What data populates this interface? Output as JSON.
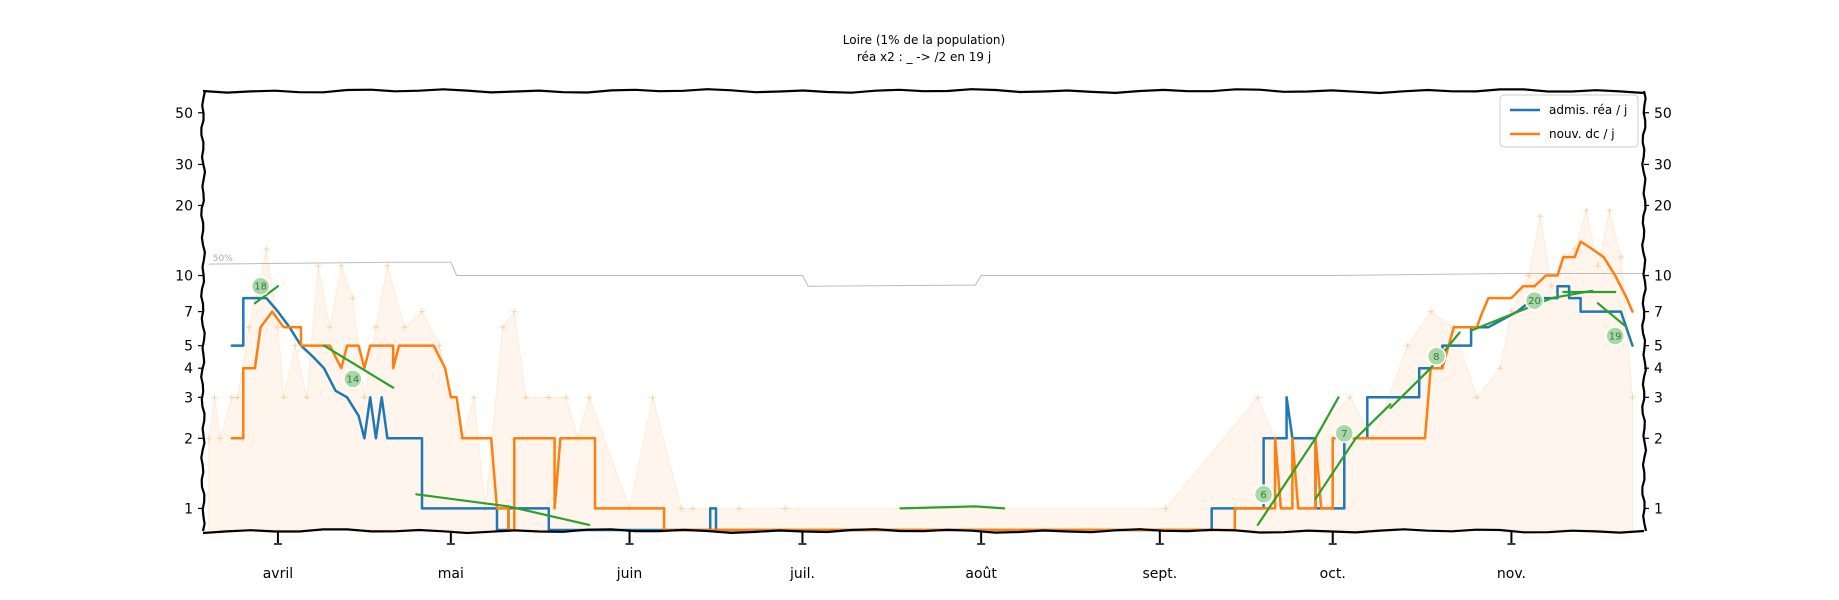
{
  "chart_data": {
    "type": "line",
    "title": "Loire (1% de la population)",
    "subtitle": "réa x2 : _ -> /2 en 19 j",
    "xlabel": "",
    "ylabel": "",
    "yscale": "log",
    "ylim": [
      0.8,
      62
    ],
    "xlim": [
      "2020-03-19",
      "2020-11-24"
    ],
    "grid": false,
    "legend_position": "top-right",
    "x_tick_labels": [
      {
        "date": "2020-04-01",
        "label": "avril"
      },
      {
        "date": "2020-05-01",
        "label": "mai"
      },
      {
        "date": "2020-06-01",
        "label": "juin"
      },
      {
        "date": "2020-07-01",
        "label": "juil."
      },
      {
        "date": "2020-08-01",
        "label": "août"
      },
      {
        "date": "2020-09-01",
        "label": "sept."
      },
      {
        "date": "2020-10-01",
        "label": "oct."
      },
      {
        "date": "2020-11-01",
        "label": "nov."
      }
    ],
    "y_ticks": [
      1,
      2,
      3,
      4,
      5,
      7,
      10,
      20,
      30,
      50
    ],
    "y_tick_labels": [
      "1",
      "2",
      "3",
      "4",
      "5",
      "7",
      "10",
      "20",
      "30",
      "50"
    ],
    "series": [
      {
        "name": "admis. réa / j",
        "color": "#1f77b4",
        "points": [
          [
            "2020-03-24",
            5
          ],
          [
            "2020-03-26",
            5
          ],
          [
            "2020-03-26",
            8
          ],
          [
            "2020-03-30",
            8
          ],
          [
            "2020-04-01",
            7
          ],
          [
            "2020-04-03",
            6
          ],
          [
            "2020-04-05",
            5
          ],
          [
            "2020-04-07",
            4.5
          ],
          [
            "2020-04-09",
            4
          ],
          [
            "2020-04-11",
            3.2
          ],
          [
            "2020-04-13",
            3
          ],
          [
            "2020-04-15",
            2.5
          ],
          [
            "2020-04-16",
            2
          ],
          [
            "2020-04-17",
            3
          ],
          [
            "2020-04-18",
            2
          ],
          [
            "2020-04-19",
            3
          ],
          [
            "2020-04-20",
            2
          ],
          [
            "2020-04-26",
            2
          ],
          [
            "2020-04-26",
            1
          ],
          [
            "2020-05-09",
            1
          ],
          [
            "2020-05-09",
            0.78
          ],
          [
            "2020-05-11",
            0.78
          ],
          [
            "2020-05-11",
            1
          ],
          [
            "2020-05-18",
            1
          ],
          [
            "2020-05-18",
            0.78
          ],
          [
            "2020-06-15",
            0.78
          ],
          [
            "2020-06-15",
            1
          ],
          [
            "2020-06-16",
            1
          ],
          [
            "2020-06-16",
            0.78
          ],
          [
            "2020-09-10",
            0.78
          ],
          [
            "2020-09-10",
            1
          ],
          [
            "2020-09-19",
            1
          ],
          [
            "2020-09-19",
            2
          ],
          [
            "2020-09-23",
            2
          ],
          [
            "2020-09-23",
            3
          ],
          [
            "2020-09-24",
            2
          ],
          [
            "2020-09-28",
            2
          ],
          [
            "2020-09-28",
            1
          ],
          [
            "2020-10-03",
            1
          ],
          [
            "2020-10-03",
            2
          ],
          [
            "2020-10-07",
            2
          ],
          [
            "2020-10-07",
            3
          ],
          [
            "2020-10-16",
            3
          ],
          [
            "2020-10-16",
            4
          ],
          [
            "2020-10-20",
            4
          ],
          [
            "2020-10-20",
            5
          ],
          [
            "2020-10-25",
            5
          ],
          [
            "2020-10-25",
            6
          ],
          [
            "2020-10-28",
            6
          ],
          [
            "2020-11-02",
            7
          ],
          [
            "2020-11-05",
            8
          ],
          [
            "2020-11-09",
            8
          ],
          [
            "2020-11-09",
            9
          ],
          [
            "2020-11-11",
            9
          ],
          [
            "2020-11-11",
            8
          ],
          [
            "2020-11-13",
            8
          ],
          [
            "2020-11-13",
            7
          ],
          [
            "2020-11-20",
            7
          ],
          [
            "2020-11-22",
            5
          ]
        ]
      },
      {
        "name": "nouv. dc / j",
        "color": "#ff7f0e",
        "points": [
          [
            "2020-03-24",
            2
          ],
          [
            "2020-03-26",
            2
          ],
          [
            "2020-03-26",
            4
          ],
          [
            "2020-03-28",
            4
          ],
          [
            "2020-03-29",
            6
          ],
          [
            "2020-03-31",
            7
          ],
          [
            "2020-04-02",
            6
          ],
          [
            "2020-04-05",
            6
          ],
          [
            "2020-04-05",
            5
          ],
          [
            "2020-04-10",
            5
          ],
          [
            "2020-04-12",
            4
          ],
          [
            "2020-04-13",
            5
          ],
          [
            "2020-04-15",
            5
          ],
          [
            "2020-04-16",
            4
          ],
          [
            "2020-04-17",
            5
          ],
          [
            "2020-04-21",
            5
          ],
          [
            "2020-04-21",
            4
          ],
          [
            "2020-04-22",
            5
          ],
          [
            "2020-04-28",
            5
          ],
          [
            "2020-04-30",
            4
          ],
          [
            "2020-05-01",
            3
          ],
          [
            "2020-05-02",
            3
          ],
          [
            "2020-05-03",
            2
          ],
          [
            "2020-05-08",
            2
          ],
          [
            "2020-05-09",
            1
          ],
          [
            "2020-05-11",
            1
          ],
          [
            "2020-05-11",
            0.78
          ],
          [
            "2020-05-12",
            0.78
          ],
          [
            "2020-05-12",
            2
          ],
          [
            "2020-05-19",
            2
          ],
          [
            "2020-05-19",
            1
          ],
          [
            "2020-05-20",
            2
          ],
          [
            "2020-05-26",
            2
          ],
          [
            "2020-05-26",
            1
          ],
          [
            "2020-06-07",
            1
          ],
          [
            "2020-06-07",
            0.78
          ],
          [
            "2020-09-14",
            0.78
          ],
          [
            "2020-09-14",
            1
          ],
          [
            "2020-09-21",
            1
          ],
          [
            "2020-09-21",
            2
          ],
          [
            "2020-09-22",
            1
          ],
          [
            "2020-09-24",
            1
          ],
          [
            "2020-09-24",
            2
          ],
          [
            "2020-09-25",
            1
          ],
          [
            "2020-09-28",
            1
          ],
          [
            "2020-09-28",
            2
          ],
          [
            "2020-09-29",
            1
          ],
          [
            "2020-10-01",
            1
          ],
          [
            "2020-10-01",
            2
          ],
          [
            "2020-10-10",
            2
          ],
          [
            "2020-10-17",
            2
          ],
          [
            "2020-10-18",
            4
          ],
          [
            "2020-10-20",
            4
          ],
          [
            "2020-10-22",
            6
          ],
          [
            "2020-10-26",
            6
          ],
          [
            "2020-10-27",
            7
          ],
          [
            "2020-10-28",
            8
          ],
          [
            "2020-11-01",
            8
          ],
          [
            "2020-11-03",
            9
          ],
          [
            "2020-11-05",
            9
          ],
          [
            "2020-11-07",
            10
          ],
          [
            "2020-11-09",
            10
          ],
          [
            "2020-11-10",
            12
          ],
          [
            "2020-11-12",
            12
          ],
          [
            "2020-11-13",
            14
          ],
          [
            "2020-11-15",
            13
          ],
          [
            "2020-11-17",
            12
          ],
          [
            "2020-11-19",
            10
          ],
          [
            "2020-11-21",
            8
          ],
          [
            "2020-11-22",
            7
          ]
        ]
      }
    ],
    "raw_daily_points": {
      "color": "#ffbf7f",
      "dates": [
        "2020-03-20",
        "2020-03-21",
        "2020-03-22",
        "2020-03-24",
        "2020-03-25",
        "2020-03-27",
        "2020-03-30",
        "2020-04-01",
        "2020-04-02",
        "2020-04-04",
        "2020-04-06",
        "2020-04-08",
        "2020-04-10",
        "2020-04-12",
        "2020-04-14",
        "2020-04-16",
        "2020-04-18",
        "2020-04-20",
        "2020-04-23",
        "2020-04-26",
        "2020-04-29",
        "2020-05-03",
        "2020-05-05",
        "2020-05-07",
        "2020-05-10",
        "2020-05-12",
        "2020-05-14",
        "2020-05-18",
        "2020-05-21",
        "2020-05-23",
        "2020-05-25",
        "2020-06-01",
        "2020-06-05",
        "2020-06-10",
        "2020-06-12",
        "2020-06-20",
        "2020-06-28",
        "2020-09-02",
        "2020-09-18",
        "2020-09-21",
        "2020-09-27",
        "2020-10-04",
        "2020-10-08",
        "2020-10-14",
        "2020-10-18",
        "2020-10-22",
        "2020-10-26",
        "2020-10-30",
        "2020-11-01",
        "2020-11-04",
        "2020-11-06",
        "2020-11-08",
        "2020-11-10",
        "2020-11-12",
        "2020-11-14",
        "2020-11-16",
        "2020-11-18",
        "2020-11-20",
        "2020-11-22"
      ],
      "values": [
        2,
        3,
        2,
        3,
        3,
        6,
        13,
        6,
        3,
        5,
        3,
        11,
        6,
        11,
        8,
        3,
        6,
        11,
        6,
        7,
        5,
        2,
        3,
        1,
        6,
        7,
        3,
        3,
        3,
        2,
        3,
        1,
        3,
        1,
        1,
        1,
        1,
        1,
        3,
        2,
        2,
        3,
        2,
        5,
        7,
        6,
        3,
        4,
        7,
        10,
        18,
        9,
        12,
        13,
        19,
        11,
        19,
        12,
        3
      ]
    },
    "reference_line": {
      "label": "50%",
      "points": [
        [
          "2020-03-20",
          11.2
        ],
        [
          "2020-04-20",
          11.4
        ],
        [
          "2020-05-01",
          11.4
        ],
        [
          "2020-05-02",
          10
        ],
        [
          "2020-06-01",
          10
        ],
        [
          "2020-07-01",
          10
        ],
        [
          "2020-07-02",
          9
        ],
        [
          "2020-07-31",
          9.1
        ],
        [
          "2020-08-01",
          10
        ],
        [
          "2020-09-01",
          10
        ],
        [
          "2020-10-01",
          10
        ],
        [
          "2020-11-01",
          10.2
        ],
        [
          "2020-11-24",
          10.2
        ]
      ]
    },
    "trend_segments": [
      {
        "color": "#2ca02c",
        "label": "18",
        "label_at": [
          "2020-03-29",
          9.0
        ],
        "points": [
          [
            "2020-03-28",
            7.6
          ],
          [
            "2020-04-01",
            9.0
          ]
        ]
      },
      {
        "color": "#2ca02c",
        "label": "14",
        "label_at": [
          "2020-04-14",
          3.6
        ],
        "points": [
          [
            "2020-04-09",
            5.0
          ],
          [
            "2020-04-21",
            3.3
          ]
        ]
      },
      {
        "color": "#2ca02c",
        "label": "",
        "points": [
          [
            "2020-04-25",
            1.15
          ],
          [
            "2020-05-11",
            1.02
          ],
          [
            "2020-05-25",
            0.85
          ]
        ]
      },
      {
        "color": "#2ca02c",
        "label": "",
        "points": [
          [
            "2020-07-18",
            1.0
          ],
          [
            "2020-07-31",
            1.02
          ],
          [
            "2020-08-05",
            1.0
          ]
        ]
      },
      {
        "color": "#2ca02c",
        "label": "6",
        "label_at": [
          "2020-09-19",
          1.15
        ],
        "points": [
          [
            "2020-09-18",
            0.85
          ],
          [
            "2020-09-28",
            2.0
          ],
          [
            "2020-10-02",
            3.0
          ]
        ]
      },
      {
        "color": "#2ca02c",
        "label": "7",
        "label_at": [
          "2020-10-03",
          2.1
        ],
        "points": [
          [
            "2020-09-28",
            1.1
          ],
          [
            "2020-10-05",
            2.0
          ],
          [
            "2020-10-11",
            2.8
          ]
        ]
      },
      {
        "color": "#2ca02c",
        "label": "8",
        "label_at": [
          "2020-10-19",
          4.5
        ],
        "points": [
          [
            "2020-10-11",
            2.7
          ],
          [
            "2020-10-18",
            4.0
          ],
          [
            "2020-10-23",
            5.7
          ]
        ]
      },
      {
        "color": "#2ca02c",
        "label": "20",
        "label_at": [
          "2020-11-05",
          7.8
        ],
        "points": [
          [
            "2020-10-25",
            5.8
          ],
          [
            "2020-11-08",
            8.0
          ],
          [
            "2020-11-15",
            8.6
          ]
        ]
      },
      {
        "color": "#2ca02c",
        "label": "",
        "points": [
          [
            "2020-11-10",
            8.5
          ],
          [
            "2020-11-19",
            8.5
          ]
        ]
      },
      {
        "color": "#2ca02c",
        "label": "19",
        "label_at": [
          "2020-11-19",
          5.5
        ],
        "points": [
          [
            "2020-11-16",
            7.6
          ],
          [
            "2020-11-21",
            6.0
          ]
        ]
      }
    ]
  }
}
